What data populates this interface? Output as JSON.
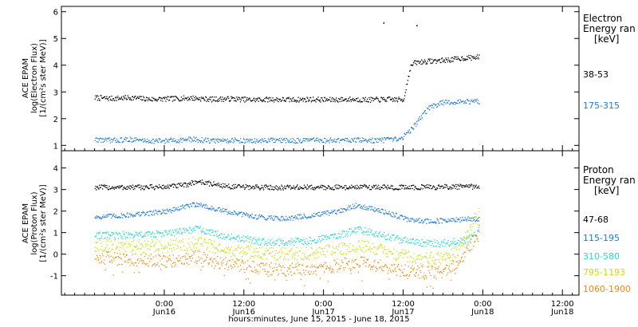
{
  "chart_data": [
    {
      "type": "scatter",
      "panel": "electron",
      "ylabel_lines": [
        "ACE EPAM",
        "log(Electron Flux)",
        "[1/(cm²s ster MeV)]"
      ],
      "ylim": [
        0.8,
        6.2
      ],
      "yticks": [
        1,
        2,
        3,
        4,
        5,
        6
      ],
      "legend_lines": [
        "Electron",
        "Energy ran",
        "[keV]"
      ],
      "series": [
        {
          "name": "38-53",
          "color": "#000000",
          "points": [
            [
              -21,
              2.8
            ],
            [
              -16,
              2.77
            ],
            [
              -10,
              2.8
            ],
            [
              -4,
              2.74
            ],
            [
              2,
              2.76
            ],
            [
              8,
              2.79
            ],
            [
              14,
              2.74
            ],
            [
              20,
              2.76
            ],
            [
              26,
              2.72
            ],
            [
              32,
              2.74
            ],
            [
              38,
              2.72
            ],
            [
              44,
              2.74
            ],
            [
              50,
              2.72
            ],
            [
              56,
              2.74
            ],
            [
              62,
              2.72
            ],
            [
              68,
              2.74
            ],
            [
              72,
              2.72
            ],
            [
              74,
              3.9
            ],
            [
              75,
              4.1
            ],
            [
              78,
              4.15
            ],
            [
              82,
              4.18
            ],
            [
              86,
              4.22
            ],
            [
              90,
              4.28
            ],
            [
              95,
              4.32
            ]
          ],
          "outliers": [
            [
              66,
              5.6
            ],
            [
              76,
              5.5
            ]
          ]
        },
        {
          "name": "175-315",
          "color": "#1e7ad6",
          "points": [
            [
              -21,
              1.24
            ],
            [
              -16,
              1.2
            ],
            [
              -10,
              1.24
            ],
            [
              -4,
              1.18
            ],
            [
              2,
              1.2
            ],
            [
              8,
              1.24
            ],
            [
              14,
              1.19
            ],
            [
              20,
              1.21
            ],
            [
              26,
              1.18
            ],
            [
              32,
              1.2
            ],
            [
              38,
              1.19
            ],
            [
              44,
              1.21
            ],
            [
              50,
              1.2
            ],
            [
              56,
              1.22
            ],
            [
              62,
              1.2
            ],
            [
              68,
              1.22
            ],
            [
              71,
              1.25
            ],
            [
              73,
              1.45
            ],
            [
              75,
              1.7
            ],
            [
              77,
              2.05
            ],
            [
              80,
              2.45
            ],
            [
              84,
              2.62
            ],
            [
              90,
              2.65
            ],
            [
              95,
              2.66
            ]
          ]
        }
      ]
    },
    {
      "type": "scatter",
      "panel": "proton",
      "ylabel_lines": [
        "ACE EPAM",
        "log(Proton Flux)",
        "[1/(cm²s ster MeV)]"
      ],
      "ylim": [
        -1.9,
        4.8
      ],
      "yticks": [
        -1,
        0,
        1,
        2,
        3,
        4
      ],
      "legend_lines": [
        "Proton",
        "Energy ran",
        "[keV]"
      ],
      "series": [
        {
          "name": "47-68",
          "color": "#000000",
          "points": [
            [
              -21,
              3.12
            ],
            [
              -10,
              3.12
            ],
            [
              0,
              3.14
            ],
            [
              6,
              3.22
            ],
            [
              10,
              3.4
            ],
            [
              14,
              3.28
            ],
            [
              20,
              3.15
            ],
            [
              30,
              3.12
            ],
            [
              40,
              3.12
            ],
            [
              50,
              3.12
            ],
            [
              60,
              3.14
            ],
            [
              70,
              3.12
            ],
            [
              80,
              3.13
            ],
            [
              90,
              3.15
            ],
            [
              95,
              3.16
            ]
          ]
        },
        {
          "name": "115-195",
          "color": "#1e7ad6",
          "points": [
            [
              -21,
              1.75
            ],
            [
              -14,
              1.8
            ],
            [
              -6,
              1.9
            ],
            [
              2,
              2.05
            ],
            [
              8,
              2.3
            ],
            [
              10,
              2.35
            ],
            [
              14,
              2.15
            ],
            [
              20,
              1.95
            ],
            [
              28,
              1.75
            ],
            [
              36,
              1.68
            ],
            [
              44,
              1.8
            ],
            [
              52,
              1.98
            ],
            [
              58,
              2.3
            ],
            [
              62,
              2.15
            ],
            [
              68,
              1.9
            ],
            [
              74,
              1.6
            ],
            [
              80,
              1.55
            ],
            [
              86,
              1.58
            ],
            [
              92,
              1.65
            ],
            [
              95,
              1.66
            ]
          ]
        },
        {
          "name": "310-580",
          "color": "#2ad8c8",
          "points": [
            [
              -21,
              0.9
            ],
            [
              -14,
              0.88
            ],
            [
              -6,
              0.92
            ],
            [
              2,
              1.0
            ],
            [
              8,
              1.15
            ],
            [
              10,
              1.2
            ],
            [
              14,
              1.0
            ],
            [
              20,
              0.82
            ],
            [
              28,
              0.62
            ],
            [
              36,
              0.55
            ],
            [
              44,
              0.65
            ],
            [
              52,
              0.88
            ],
            [
              58,
              1.15
            ],
            [
              62,
              1.05
            ],
            [
              68,
              0.8
            ],
            [
              74,
              0.6
            ],
            [
              80,
              0.52
            ],
            [
              86,
              0.55
            ],
            [
              92,
              0.75
            ],
            [
              95,
              1.15
            ]
          ]
        },
        {
          "name": "795-1193",
          "color": "#c8e000",
          "points": [
            [
              -21,
              0.45
            ],
            [
              -14,
              0.4
            ],
            [
              -6,
              0.4
            ],
            [
              2,
              0.42
            ],
            [
              8,
              0.5
            ],
            [
              10,
              0.55
            ],
            [
              14,
              0.4
            ],
            [
              20,
              0.25
            ],
            [
              28,
              0.1
            ],
            [
              36,
              0.02
            ],
            [
              44,
              0.06
            ],
            [
              52,
              0.2
            ],
            [
              58,
              0.4
            ],
            [
              62,
              0.32
            ],
            [
              68,
              0.1
            ],
            [
              74,
              -0.1
            ],
            [
              80,
              -0.2
            ],
            [
              85,
              -0.15
            ],
            [
              89,
              0.3
            ],
            [
              95,
              2.1
            ]
          ]
        },
        {
          "name": "1060-1900",
          "color": "#e88a10",
          "points": [
            [
              -21,
              -0.1
            ],
            [
              -14,
              -0.2
            ],
            [
              -6,
              -0.25
            ],
            [
              2,
              -0.3
            ],
            [
              8,
              -0.15
            ],
            [
              10,
              -0.1
            ],
            [
              14,
              -0.3
            ],
            [
              20,
              -0.45
            ],
            [
              28,
              -0.6
            ],
            [
              36,
              -0.7
            ],
            [
              44,
              -0.65
            ],
            [
              52,
              -0.5
            ],
            [
              58,
              -0.35
            ],
            [
              62,
              -0.45
            ],
            [
              68,
              -0.6
            ],
            [
              74,
              -0.8
            ],
            [
              80,
              -0.85
            ],
            [
              85,
              -0.75
            ],
            [
              89,
              -0.3
            ],
            [
              95,
              1.1
            ]
          ]
        }
      ]
    }
  ],
  "x_axis": {
    "xlim": [
      -31,
      125
    ],
    "ticks": [
      {
        "time": "0:00",
        "date": "Jun16"
      },
      {
        "time": "12:00",
        "date": "Jun16"
      },
      {
        "time": "0:00",
        "date": "Jun17"
      },
      {
        "time": "12:00",
        "date": "Jun17"
      },
      {
        "time": "0:00",
        "date": "Jun18"
      },
      {
        "time": "12:00",
        "date": "Jun18"
      }
    ],
    "tick_hours": [
      0,
      24,
      48,
      72,
      96,
      120
    ],
    "xlabel": "hours:minutes, June 15, 2015 - June 18, 2015"
  }
}
